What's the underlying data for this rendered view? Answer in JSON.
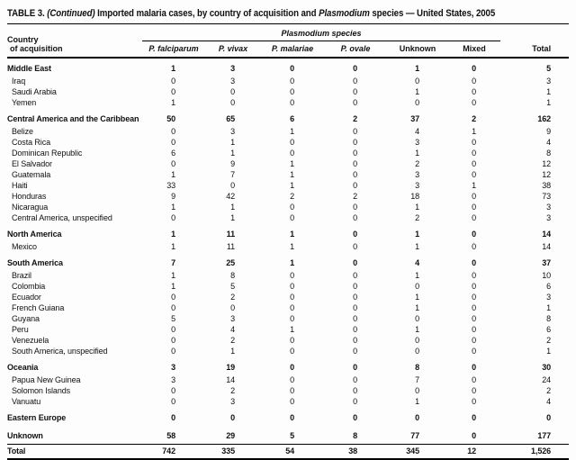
{
  "page": {
    "title_parts": {
      "p1": "TABLE 3. ",
      "p2": "(Continued)",
      "p3": " Imported malaria cases, by country of acquisition and ",
      "p4": "Plasmodium",
      "p5": " species — United States, 2005"
    }
  },
  "table": {
    "country_header_line1": "Country",
    "country_header_line2": "of acquisition",
    "species_group_header": "Plasmodium species",
    "species_columns": [
      "P. falciparum",
      "P. vivax",
      "P. malariae",
      "P. ovale",
      "Unknown",
      "Mixed"
    ],
    "total_header": "Total",
    "rows": [
      {
        "type": "group",
        "label": "Middle East",
        "values": [
          "1",
          "3",
          "0",
          "0",
          "1",
          "0"
        ],
        "total": "5"
      },
      {
        "type": "sub",
        "label": "Iraq",
        "values": [
          "0",
          "3",
          "0",
          "0",
          "0",
          "0"
        ],
        "total": "3"
      },
      {
        "type": "sub",
        "label": "Saudi Arabia",
        "values": [
          "0",
          "0",
          "0",
          "0",
          "1",
          "0"
        ],
        "total": "1"
      },
      {
        "type": "sub",
        "label": "Yemen",
        "values": [
          "1",
          "0",
          "0",
          "0",
          "0",
          "0"
        ],
        "total": "1"
      },
      {
        "type": "group",
        "label": "Central America and the Caribbean",
        "values": [
          "50",
          "65",
          "6",
          "2",
          "37",
          "2"
        ],
        "total": "162"
      },
      {
        "type": "sub",
        "label": "Belize",
        "values": [
          "0",
          "3",
          "1",
          "0",
          "4",
          "1"
        ],
        "total": "9"
      },
      {
        "type": "sub",
        "label": "Costa Rica",
        "values": [
          "0",
          "1",
          "0",
          "0",
          "3",
          "0"
        ],
        "total": "4"
      },
      {
        "type": "sub",
        "label": "Dominican Republic",
        "values": [
          "6",
          "1",
          "0",
          "0",
          "1",
          "0"
        ],
        "total": "8"
      },
      {
        "type": "sub",
        "label": "El Salvador",
        "values": [
          "0",
          "9",
          "1",
          "0",
          "2",
          "0"
        ],
        "total": "12"
      },
      {
        "type": "sub",
        "label": "Guatemala",
        "values": [
          "1",
          "7",
          "1",
          "0",
          "3",
          "0"
        ],
        "total": "12"
      },
      {
        "type": "sub",
        "label": "Haiti",
        "values": [
          "33",
          "0",
          "1",
          "0",
          "3",
          "1"
        ],
        "total": "38"
      },
      {
        "type": "sub",
        "label": "Honduras",
        "values": [
          "9",
          "42",
          "2",
          "2",
          "18",
          "0"
        ],
        "total": "73"
      },
      {
        "type": "sub",
        "label": "Nicaragua",
        "values": [
          "1",
          "1",
          "0",
          "0",
          "1",
          "0"
        ],
        "total": "3"
      },
      {
        "type": "sub",
        "label": "Central America, unspecified",
        "values": [
          "0",
          "1",
          "0",
          "0",
          "2",
          "0"
        ],
        "total": "3"
      },
      {
        "type": "group",
        "label": "North America",
        "values": [
          "1",
          "11",
          "1",
          "0",
          "1",
          "0"
        ],
        "total": "14"
      },
      {
        "type": "sub",
        "label": "Mexico",
        "values": [
          "1",
          "11",
          "1",
          "0",
          "1",
          "0"
        ],
        "total": "14"
      },
      {
        "type": "group",
        "label": "South America",
        "values": [
          "7",
          "25",
          "1",
          "0",
          "4",
          "0"
        ],
        "total": "37"
      },
      {
        "type": "sub",
        "label": "Brazil",
        "values": [
          "1",
          "8",
          "0",
          "0",
          "1",
          "0"
        ],
        "total": "10"
      },
      {
        "type": "sub",
        "label": "Colombia",
        "values": [
          "1",
          "5",
          "0",
          "0",
          "0",
          "0"
        ],
        "total": "6"
      },
      {
        "type": "sub",
        "label": "Ecuador",
        "values": [
          "0",
          "2",
          "0",
          "0",
          "1",
          "0"
        ],
        "total": "3"
      },
      {
        "type": "sub",
        "label": "French Guiana",
        "values": [
          "0",
          "0",
          "0",
          "0",
          "1",
          "0"
        ],
        "total": "1"
      },
      {
        "type": "sub",
        "label": "Guyana",
        "values": [
          "5",
          "3",
          "0",
          "0",
          "0",
          "0"
        ],
        "total": "8"
      },
      {
        "type": "sub",
        "label": "Peru",
        "values": [
          "0",
          "4",
          "1",
          "0",
          "1",
          "0"
        ],
        "total": "6"
      },
      {
        "type": "sub",
        "label": "Venezuela",
        "values": [
          "0",
          "2",
          "0",
          "0",
          "0",
          "0"
        ],
        "total": "2"
      },
      {
        "type": "sub",
        "label": "South America, unspecified",
        "values": [
          "0",
          "1",
          "0",
          "0",
          "0",
          "0"
        ],
        "total": "1"
      },
      {
        "type": "group",
        "label": "Oceania",
        "values": [
          "3",
          "19",
          "0",
          "0",
          "8",
          "0"
        ],
        "total": "30"
      },
      {
        "type": "sub",
        "label": "Papua New Guinea",
        "values": [
          "3",
          "14",
          "0",
          "0",
          "7",
          "0"
        ],
        "total": "24"
      },
      {
        "type": "sub",
        "label": "Solomon Islands",
        "values": [
          "0",
          "2",
          "0",
          "0",
          "0",
          "0"
        ],
        "total": "2"
      },
      {
        "type": "sub",
        "label": "Vanuatu",
        "values": [
          "0",
          "3",
          "0",
          "0",
          "1",
          "0"
        ],
        "total": "4"
      },
      {
        "type": "group",
        "label": "Eastern Europe",
        "values": [
          "0",
          "0",
          "0",
          "0",
          "0",
          "0"
        ],
        "total": "0"
      },
      {
        "type": "group",
        "label": "Unknown",
        "values": [
          "58",
          "29",
          "5",
          "8",
          "77",
          "0"
        ],
        "total": "177"
      },
      {
        "type": "total",
        "label": "Total",
        "values": [
          "742",
          "335",
          "54",
          "38",
          "345",
          "12"
        ],
        "total": "1,526"
      }
    ]
  }
}
